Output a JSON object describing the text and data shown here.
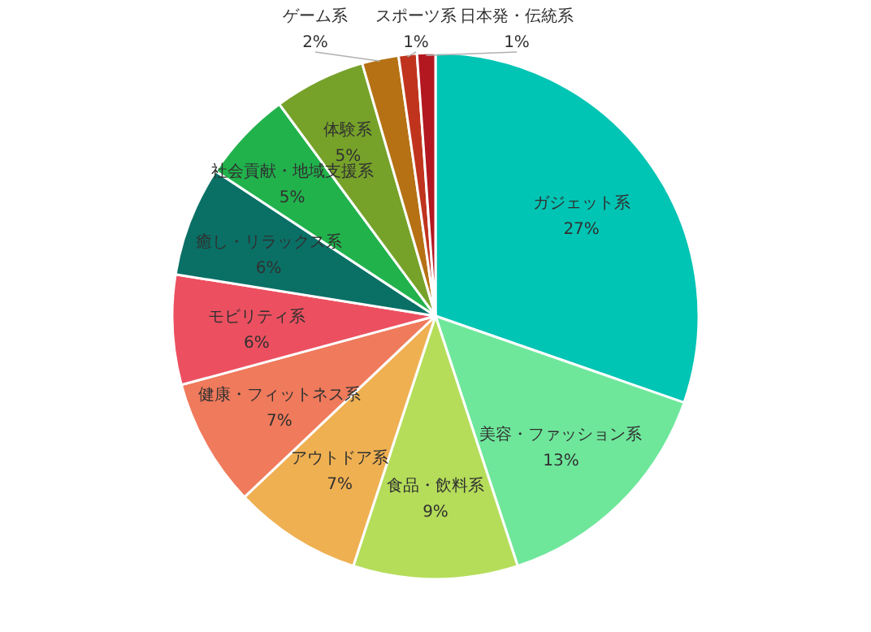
{
  "chart_data": {
    "type": "pie",
    "categories": [
      "ガジェット系",
      "美容・ファッション系",
      "食品・飲料系",
      "アウトドア系",
      "健康・フィットネス系",
      "モビリティ系",
      "癒し・リラックス系",
      "社会貢献・地域支援系",
      "体験系",
      "ゲーム系",
      "スポーツ系",
      "日本発・伝統系"
    ],
    "values": [
      27,
      13,
      9,
      7,
      7,
      6,
      6,
      5,
      5,
      2,
      1,
      1
    ],
    "value_labels": [
      "27%",
      "13%",
      "9%",
      "7%",
      "7%",
      "6%",
      "6%",
      "5%",
      "5%",
      "2%",
      "1%",
      "1%"
    ],
    "colors": [
      "#00c4b4",
      "#6ee79b",
      "#b5dd5a",
      "#efb052",
      "#ef7a5c",
      "#ec5060",
      "#0a7066",
      "#21b24c",
      "#76a22a",
      "#b57114",
      "#c0341e",
      "#b31720"
    ]
  }
}
